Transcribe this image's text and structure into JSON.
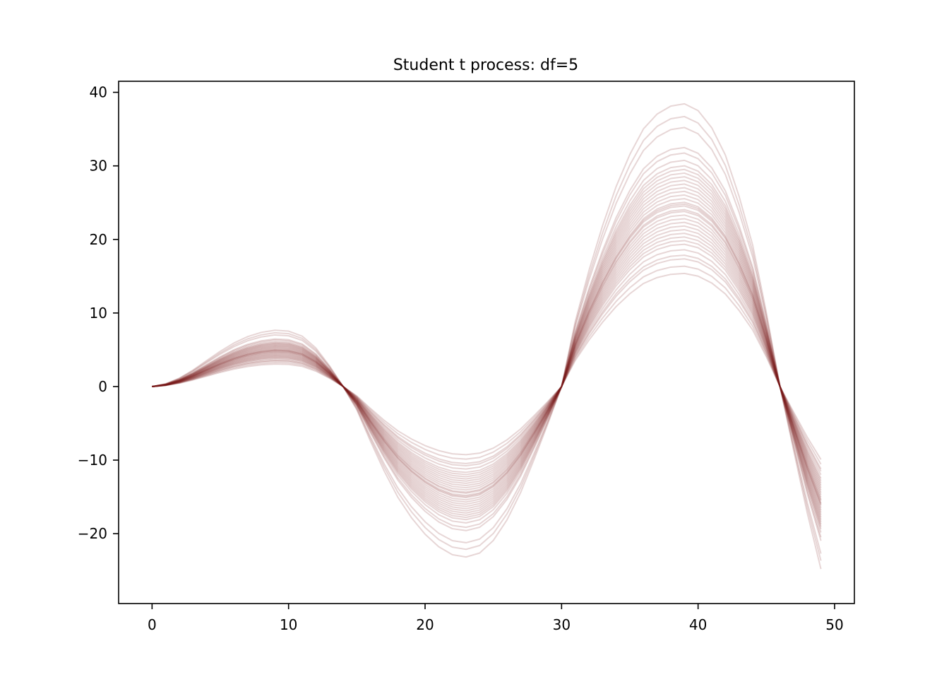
{
  "chart_data": {
    "type": "line",
    "title": "Student t process: df=5",
    "xlabel": "",
    "ylabel": "",
    "xlim": [
      -2.45,
      51.45
    ],
    "ylim": [
      -29.5,
      41.5
    ],
    "grid": false,
    "legend": "none",
    "line_color": "#7a1a1a",
    "line_opacity": 0.18,
    "x_ticks": [
      0,
      10,
      20,
      30,
      40,
      50
    ],
    "x_tick_labels": [
      "0",
      "10",
      "20",
      "30",
      "40",
      "50"
    ],
    "y_ticks": [
      -20,
      -10,
      0,
      10,
      20,
      30,
      40
    ],
    "y_tick_labels": [
      "−20",
      "−10",
      "0",
      "10",
      "20",
      "30",
      "40"
    ],
    "x": [
      0,
      1,
      2,
      3,
      4,
      5,
      6,
      7,
      8,
      9,
      10,
      11,
      12,
      13,
      14,
      15,
      16,
      17,
      18,
      19,
      20,
      21,
      22,
      23,
      24,
      25,
      26,
      27,
      28,
      29,
      30,
      31,
      32,
      33,
      34,
      35,
      36,
      37,
      38,
      39,
      40,
      41,
      42,
      43,
      44,
      45,
      46,
      47,
      48,
      49
    ],
    "curve_shape": {
      "description": "mean-shaped sample paths; each series is amplitude times the base curve",
      "base": [
        0,
        0.24,
        0.74,
        1.45,
        2.28,
        3.1,
        3.82,
        4.38,
        4.75,
        4.94,
        4.86,
        4.42,
        3.38,
        1.82,
        0,
        -2.05,
        -4.8,
        -7.4,
        -9.7,
        -11.5,
        -12.95,
        -14.05,
        -14.75,
        -14.95,
        -14.6,
        -13.5,
        -11.7,
        -9.3,
        -6.35,
        -3.25,
        0,
        5.7,
        10.15,
        14.1,
        17.55,
        20.35,
        22.6,
        23.9,
        24.6,
        24.8,
        24.2,
        22.7,
        20.3,
        16.7,
        12.4,
        6.5,
        0,
        -5.6,
        -11.1,
        -16.0
      ]
    },
    "series_amplitudes": [
      0.62,
      0.66,
      0.7,
      0.72,
      0.75,
      0.78,
      0.8,
      0.82,
      0.84,
      0.86,
      0.88,
      0.9,
      0.92,
      0.94,
      0.96,
      0.97,
      0.99,
      1.0,
      1.01,
      1.03,
      1.05,
      1.07,
      1.09,
      1.11,
      1.13,
      1.15,
      1.17,
      1.19,
      1.21,
      1.24,
      1.28,
      1.31,
      1.42,
      1.48,
      1.55
    ]
  }
}
